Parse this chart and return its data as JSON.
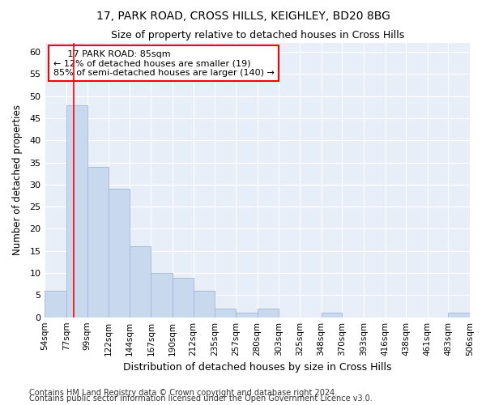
{
  "title1": "17, PARK ROAD, CROSS HILLS, KEIGHLEY, BD20 8BG",
  "title2": "Size of property relative to detached houses in Cross Hills",
  "xlabel": "Distribution of detached houses by size in Cross Hills",
  "ylabel": "Number of detached properties",
  "bar_color": "#c8d9ee",
  "bar_edge_color": "#a0b8d8",
  "bg_color": "#e8eef8",
  "grid_color": "#ffffff",
  "red_line_x": 85,
  "annotation_title": "17 PARK ROAD: 85sqm",
  "annotation_line1": "← 12% of detached houses are smaller (19)",
  "annotation_line2": "85% of semi-detached houses are larger (140) →",
  "bins": [
    54,
    77,
    99,
    122,
    144,
    167,
    190,
    212,
    235,
    257,
    280,
    303,
    325,
    348,
    370,
    393,
    416,
    438,
    461,
    483,
    506
  ],
  "counts": [
    6,
    48,
    34,
    29,
    16,
    10,
    9,
    6,
    2,
    1,
    2,
    0,
    0,
    1,
    0,
    0,
    0,
    0,
    0,
    1
  ],
  "ylim": [
    0,
    62
  ],
  "yticks": [
    0,
    5,
    10,
    15,
    20,
    25,
    30,
    35,
    40,
    45,
    50,
    55,
    60
  ],
  "footnote1": "Contains HM Land Registry data © Crown copyright and database right 2024.",
  "footnote2": "Contains public sector information licensed under the Open Government Licence v3.0."
}
